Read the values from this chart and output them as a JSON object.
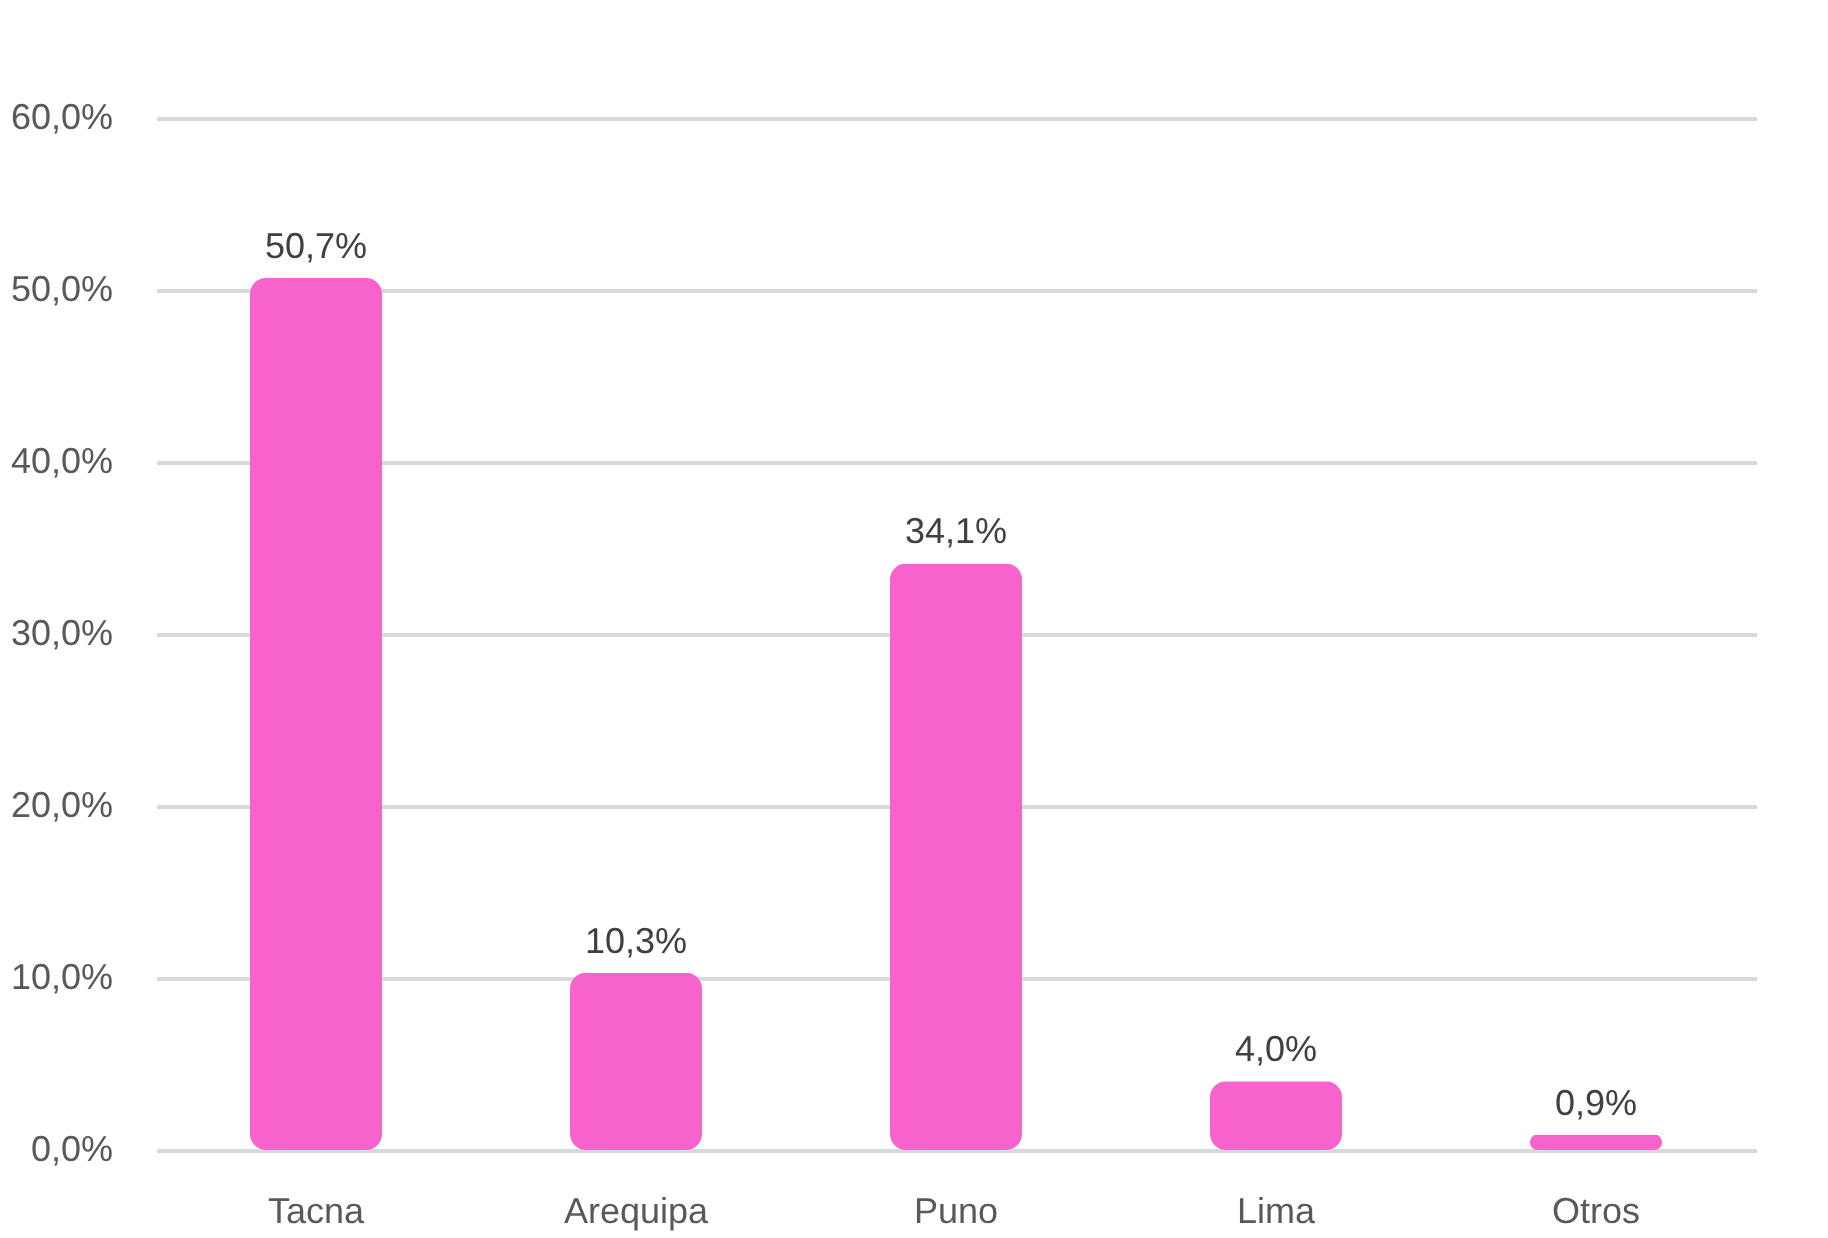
{
  "chart_data": {
    "type": "bar",
    "categories": [
      "Tacna",
      "Arequipa",
      "Puno",
      "Lima",
      "Otros"
    ],
    "values": [
      50.7,
      10.3,
      34.1,
      4.0,
      0.9
    ],
    "value_labels": [
      "50,7%",
      "10,3%",
      "34,1%",
      "4,0%",
      "0,9%"
    ],
    "color": "#f862cc",
    "ylim": [
      0,
      60
    ],
    "yticks": [
      {
        "value": 0,
        "label": "0,0%"
      },
      {
        "value": 10,
        "label": "10,0%"
      },
      {
        "value": 20,
        "label": "20,0%"
      },
      {
        "value": 30,
        "label": "30,0%"
      },
      {
        "value": 40,
        "label": "40,0%"
      },
      {
        "value": 50,
        "label": "50,0%"
      },
      {
        "value": 60,
        "label": "60,0%"
      }
    ],
    "grid": "y"
  }
}
